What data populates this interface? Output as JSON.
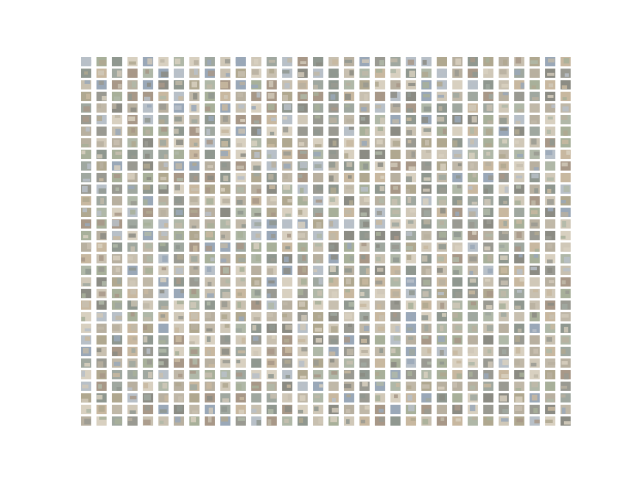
{
  "figure": {
    "kind": "image-thumbnail-grid",
    "rows": 32,
    "columns": 32,
    "background_color": "#ffffff",
    "tile_palette": [
      "#9a9a92",
      "#b8b0a0",
      "#a8b09a",
      "#c8c0b0",
      "#9aa8b8",
      "#b0a890",
      "#d0c8b8",
      "#8c8c84",
      "#c0b8a8",
      "#a0a8a0",
      "#b8c0c8",
      "#c8b8a0",
      "#909890",
      "#d8d0c0",
      "#a89888",
      "#b0b8a8"
    ]
  }
}
